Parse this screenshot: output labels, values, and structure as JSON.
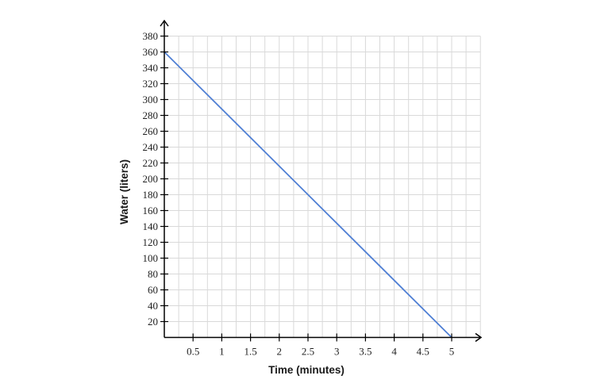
{
  "chart_data": {
    "type": "line",
    "title": "",
    "xlabel": "Time (minutes)",
    "ylabel": "Water (liters)",
    "xlim": [
      0,
      5.5
    ],
    "ylim": [
      0,
      380
    ],
    "x_ticks": [
      0.5,
      1,
      1.5,
      2,
      2.5,
      3,
      3.5,
      4,
      4.5,
      5
    ],
    "x_tick_labels": [
      "0.5",
      "1",
      "1.5",
      "2",
      "2.5",
      "3",
      "3.5",
      "4",
      "4.5",
      "5"
    ],
    "y_ticks": [
      20,
      40,
      60,
      80,
      100,
      120,
      140,
      160,
      180,
      200,
      220,
      240,
      260,
      280,
      300,
      320,
      340,
      360,
      380
    ],
    "y_tick_labels": [
      "20",
      "40",
      "60",
      "80",
      "100",
      "120",
      "140",
      "160",
      "180",
      "200",
      "220",
      "240",
      "260",
      "280",
      "300",
      "320",
      "340",
      "360",
      "380"
    ],
    "x_grid_step": 0.25,
    "y_grid_step": 20,
    "grid": true,
    "series": [
      {
        "x": [
          0,
          5
        ],
        "y": [
          360,
          0
        ],
        "color": "#4f7fd4"
      }
    ]
  }
}
